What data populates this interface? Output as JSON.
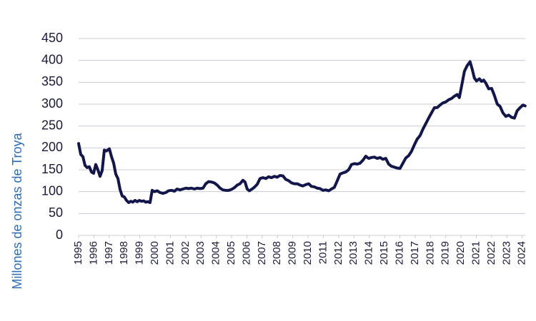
{
  "chart_data": {
    "type": "line",
    "y_label": "Millones de onzas de Troya",
    "color": "#12164a",
    "grid": true,
    "xlim": [
      1995,
      2024.2
    ],
    "xticks": [
      1995,
      1996,
      1997,
      1998,
      1999,
      2000,
      2001,
      2002,
      2003,
      2004,
      2005,
      2006,
      2007,
      2008,
      2009,
      2010,
      2011,
      2012,
      2013,
      2014,
      2015,
      2016,
      2017,
      2018,
      2019,
      2020,
      2021,
      2022,
      2023,
      2024
    ],
    "ylim": [
      0,
      450
    ],
    "yticks": [
      0,
      50,
      100,
      150,
      200,
      250,
      300,
      350,
      400,
      450
    ],
    "x": [
      1995.0,
      1995.14,
      1995.28,
      1995.42,
      1995.56,
      1995.7,
      1995.84,
      1995.98,
      1996.12,
      1996.26,
      1996.4,
      1996.54,
      1996.68,
      1996.82,
      1997.01,
      1997.15,
      1997.29,
      1997.43,
      1997.57,
      1997.71,
      1997.85,
      1997.99,
      1998.13,
      1998.27,
      1998.41,
      1998.55,
      1998.69,
      1998.83,
      1998.97,
      1999.11,
      1999.25,
      1999.39,
      1999.53,
      1999.67,
      1999.81,
      1999.95,
      2000.14,
      2000.32,
      2000.51,
      2000.7,
      2000.88,
      2001.07,
      2001.26,
      2001.44,
      2001.63,
      2001.82,
      2002.01,
      2002.19,
      2002.38,
      2002.57,
      2002.75,
      2002.94,
      2003.13,
      2003.31,
      2003.5,
      2003.69,
      2003.87,
      2004.06,
      2004.25,
      2004.43,
      2004.62,
      2004.81,
      2004.99,
      2005.18,
      2005.37,
      2005.55,
      2005.74,
      2005.88,
      2006.02,
      2006.16,
      2006.3,
      2006.49,
      2006.68,
      2006.86,
      2007.05,
      2007.24,
      2007.42,
      2007.61,
      2007.8,
      2007.98,
      2008.17,
      2008.36,
      2008.54,
      2008.73,
      2008.92,
      2009.1,
      2009.29,
      2009.48,
      2009.66,
      2009.85,
      2010.04,
      2010.22,
      2010.41,
      2010.6,
      2010.78,
      2010.97,
      2011.16,
      2011.35,
      2011.53,
      2011.72,
      2011.91,
      2012.09,
      2012.28,
      2012.47,
      2012.65,
      2012.84,
      2013.03,
      2013.21,
      2013.4,
      2013.59,
      2013.77,
      2013.96,
      2014.15,
      2014.33,
      2014.52,
      2014.71,
      2014.89,
      2015.08,
      2015.27,
      2015.45,
      2015.64,
      2015.83,
      2016.01,
      2016.2,
      2016.39,
      2016.57,
      2016.76,
      2016.95,
      2017.13,
      2017.32,
      2017.51,
      2017.69,
      2017.88,
      2018.07,
      2018.26,
      2018.44,
      2018.63,
      2018.82,
      2019.0,
      2019.19,
      2019.38,
      2019.56,
      2019.75,
      2019.89,
      2020.03,
      2020.22,
      2020.4,
      2020.59,
      2020.73,
      2020.87,
      2021.01,
      2021.2,
      2021.34,
      2021.48,
      2021.62,
      2021.81,
      2022.0,
      2022.18,
      2022.37,
      2022.55,
      2022.74,
      2022.93,
      2023.11,
      2023.3,
      2023.49,
      2023.67,
      2023.86,
      2024.05,
      2024.19
    ],
    "values": [
      210,
      185,
      180,
      160,
      155,
      157,
      145,
      142,
      162,
      150,
      135,
      148,
      195,
      193,
      198,
      180,
      165,
      140,
      130,
      105,
      90,
      88,
      80,
      75,
      78,
      76,
      80,
      77,
      80,
      78,
      79,
      76,
      77,
      75,
      103,
      100,
      102,
      98,
      96,
      98,
      102,
      103,
      101,
      106,
      104,
      106,
      108,
      107,
      108,
      106,
      108,
      107,
      108,
      118,
      123,
      122,
      120,
      115,
      108,
      104,
      103,
      103,
      105,
      109,
      115,
      118,
      126,
      122,
      106,
      102,
      105,
      110,
      117,
      130,
      132,
      130,
      134,
      132,
      135,
      133,
      137,
      136,
      128,
      125,
      120,
      118,
      118,
      115,
      113,
      116,
      118,
      112,
      111,
      108,
      107,
      103,
      104,
      102,
      106,
      110,
      125,
      140,
      143,
      145,
      150,
      162,
      164,
      163,
      165,
      172,
      181,
      176,
      178,
      179,
      176,
      178,
      174,
      176,
      163,
      158,
      156,
      154,
      153,
      165,
      177,
      182,
      192,
      207,
      220,
      228,
      243,
      255,
      268,
      280,
      292,
      292,
      298,
      303,
      305,
      310,
      313,
      318,
      322,
      315,
      340,
      375,
      388,
      397,
      380,
      360,
      353,
      358,
      352,
      355,
      348,
      335,
      336,
      320,
      300,
      295,
      280,
      272,
      275,
      270,
      268,
      285,
      292,
      298,
      296
    ]
  }
}
